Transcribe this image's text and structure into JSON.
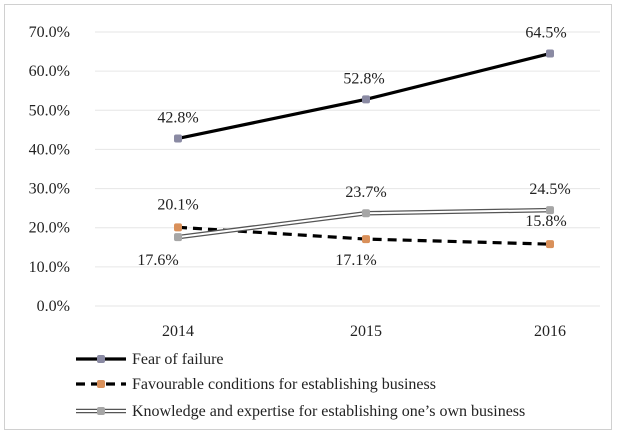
{
  "chart_data": {
    "type": "line",
    "categories": [
      "2014",
      "2015",
      "2016"
    ],
    "ylim": [
      0,
      70
    ],
    "y_ticks": [
      "0.0%",
      "10.0%",
      "20.0%",
      "30.0%",
      "40.0%",
      "50.0%",
      "60.0%",
      "70.0%"
    ],
    "grid": true,
    "legend_position": "bottom-left",
    "series": [
      {
        "name": "Fear of failure",
        "values": [
          42.8,
          52.8,
          64.5
        ],
        "labels": [
          "42.8%",
          "52.8%",
          "64.5%"
        ],
        "line_style": "solid",
        "line_color": "#000000",
        "marker_color": "#8a8aa3"
      },
      {
        "name": "Favourable conditions for establishing business",
        "values": [
          20.1,
          17.1,
          15.8
        ],
        "labels": [
          "20.1%",
          "17.1%",
          "15.8%"
        ],
        "line_style": "dashed",
        "line_color": "#000000",
        "marker_color": "#d9905a"
      },
      {
        "name": "Knowledge and expertise for establishing one’s own business",
        "values": [
          17.6,
          23.7,
          24.5
        ],
        "labels": [
          "17.6%",
          "23.7%",
          "24.5%"
        ],
        "line_style": "double",
        "line_color": "#555555",
        "marker_color": "#a6a6a6"
      }
    ]
  }
}
